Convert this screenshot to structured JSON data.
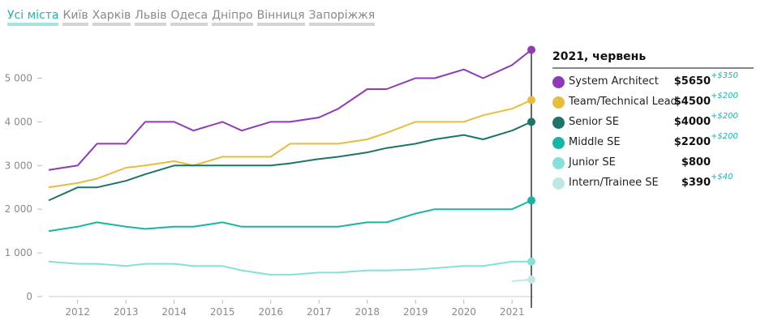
{
  "tabs": [
    "Усі міста",
    "Київ",
    "Харків",
    "Львів",
    "Одеса",
    "Дніпро",
    "Вінниця",
    "Запоріжжя"
  ],
  "active_tab": 0,
  "colors": {
    "system_architect": "#8e3bb5",
    "team_lead": "#e6bd3c",
    "senior": "#1c7566",
    "middle": "#18b5a7",
    "junior": "#85e0d8",
    "intern": "#bfe8e4",
    "delta": "#20b2aa",
    "tab_active": "#20b2aa"
  },
  "legend": {
    "title": "2021, червень",
    "items": [
      {
        "name": "System Architect",
        "value": "$5650",
        "delta": "+$350",
        "color": "#8e3bb5"
      },
      {
        "name": "Team/Technical Lead",
        "value": "$4500",
        "delta": "+$200",
        "color": "#e6bd3c"
      },
      {
        "name": "Senior SE",
        "value": "$4000",
        "delta": "+$200",
        "color": "#1c7566"
      },
      {
        "name": "Middle SE",
        "value": "$2200",
        "delta": "+$200",
        "color": "#18b5a7"
      },
      {
        "name": "Junior SE",
        "value": "$800",
        "delta": "",
        "color": "#85e0d8"
      },
      {
        "name": "Intern/Trainee SE",
        "value": "$390",
        "delta": "+$40",
        "color": "#bfe8e4"
      }
    ]
  },
  "chart_data": {
    "type": "line",
    "title": "",
    "xlabel": "",
    "ylabel": "",
    "x": [
      2011.4,
      2012.0,
      2012.4,
      2013.0,
      2013.4,
      2014.0,
      2014.4,
      2015.0,
      2015.4,
      2016.0,
      2016.4,
      2017.0,
      2017.4,
      2018.0,
      2018.4,
      2019.0,
      2019.4,
      2020.0,
      2020.4,
      2021.0,
      2021.4
    ],
    "xlim": [
      2011.4,
      2021.45
    ],
    "ylim": [
      0,
      5900
    ],
    "x_ticks": [
      "2012",
      "2013",
      "2014",
      "2015",
      "2016",
      "2017",
      "2018",
      "2019",
      "2020",
      "2021"
    ],
    "y_ticks": [
      {
        "value": 0,
        "label": "0"
      },
      {
        "value": 1000,
        "label": "1 000"
      },
      {
        "value": 2000,
        "label": "2 000"
      },
      {
        "value": 3000,
        "label": "3 000"
      },
      {
        "value": 4000,
        "label": "4 000"
      },
      {
        "value": 5000,
        "label": "5 000"
      }
    ],
    "marker_x": 2021.4,
    "series": [
      {
        "name": "System Architect",
        "color": "#8e3bb5",
        "values": [
          2900,
          3000,
          3500,
          3500,
          4000,
          4000,
          3800,
          4000,
          3800,
          4000,
          4000,
          4100,
          4300,
          4750,
          4750,
          5000,
          5000,
          5200,
          5000,
          5300,
          5650
        ]
      },
      {
        "name": "Team/Technical Lead",
        "color": "#e6bd3c",
        "values": [
          2500,
          2600,
          2700,
          2950,
          3000,
          3100,
          3000,
          3200,
          3200,
          3200,
          3500,
          3500,
          3500,
          3600,
          3750,
          4000,
          4000,
          4000,
          4150,
          4300,
          4500
        ]
      },
      {
        "name": "Senior SE",
        "color": "#1c7566",
        "values": [
          2200,
          2500,
          2500,
          2650,
          2800,
          3000,
          3000,
          3000,
          3000,
          3000,
          3050,
          3150,
          3200,
          3300,
          3400,
          3500,
          3600,
          3700,
          3600,
          3800,
          4000
        ]
      },
      {
        "name": "Middle SE",
        "color": "#18b5a7",
        "values": [
          1500,
          1600,
          1700,
          1600,
          1550,
          1600,
          1600,
          1700,
          1600,
          1600,
          1600,
          1600,
          1600,
          1700,
          1700,
          1900,
          2000,
          2000,
          2000,
          2000,
          2200
        ]
      },
      {
        "name": "Junior SE",
        "color": "#85e0d8",
        "values": [
          800,
          750,
          750,
          700,
          750,
          750,
          700,
          700,
          600,
          500,
          500,
          550,
          550,
          600,
          600,
          620,
          650,
          700,
          700,
          800,
          800
        ]
      },
      {
        "name": "Intern/Trainee SE",
        "color": "#bfe8e4",
        "x": [
          2021.0,
          2021.4
        ],
        "values": [
          350,
          390
        ]
      }
    ]
  }
}
